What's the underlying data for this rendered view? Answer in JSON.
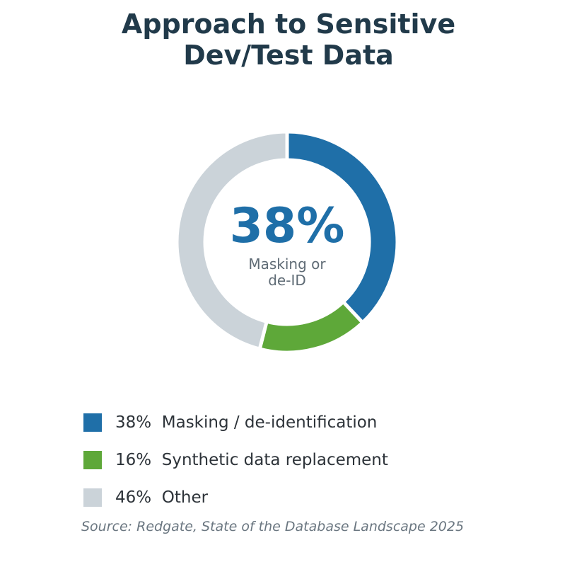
{
  "chart_data": {
    "type": "pie",
    "title_lines": [
      "Approach to Sensitive",
      "Dev/Test Data"
    ],
    "center": {
      "value": "38%",
      "label_lines": [
        "Masking or",
        "de-ID"
      ]
    },
    "slices": [
      {
        "label": "Masking / de-identification",
        "value": 38,
        "color": "#1f6fa8"
      },
      {
        "label": "Synthetic data replacement",
        "value": 16,
        "color": "#5ea839"
      },
      {
        "label": "Other",
        "value": 46,
        "color": "#cbd3d9"
      }
    ],
    "legend": [
      {
        "pct": "38%",
        "label": "Masking / de-identification"
      },
      {
        "pct": "16%",
        "label": "Synthetic data replacement"
      },
      {
        "pct": "46%",
        "label": "Other"
      }
    ],
    "source": "Source: Redgate, State of the Database Landscape 2025"
  }
}
